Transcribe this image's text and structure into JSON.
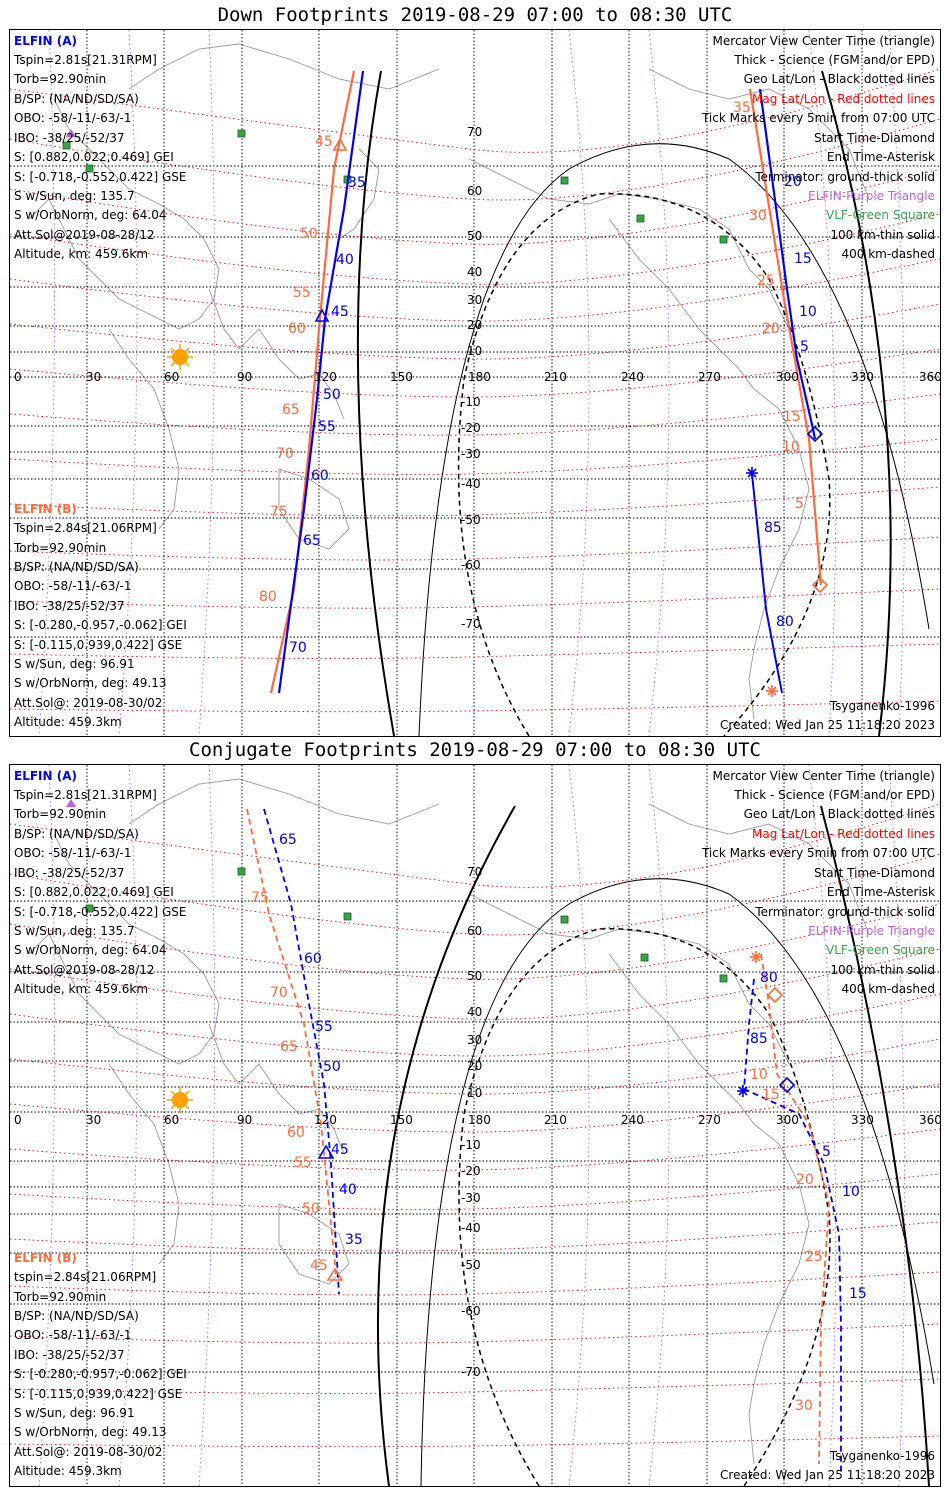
{
  "panels": [
    {
      "title": "Down Footprints 2019-08-29 07:00 to 08:30 UTC",
      "elfin_a": {
        "header": "ELFIN (A)",
        "lines": [
          "Tspin=2.81s[21.31RPM]",
          "Torb=92.90min",
          "B/SP: (NA/ND/SD/SA)",
          "OBO: -58/-11/-63/-1",
          "IBO: -38/25/-52/37",
          "S: [0.882,0.022,0.469] GEI",
          "S: [-0.718,-0.552,0.422] GSE",
          "S w/Sun, deg: 135.7",
          "S w/OrbNorm, deg: 64.04",
          "Att.Sol@2019-08-28/12",
          "Altitude, km: 459.6km"
        ]
      },
      "elfin_b": {
        "header": "ELFIN (B)",
        "lines": [
          "Tspin=2.84s[21.06RPM]",
          "Torb=92.90min",
          "B/SP: (NA/ND/SD/SA)",
          "OBO: -58/-11/-63/-1",
          "IBO: -38/25/-52/37",
          "S: [-0.280,-0.957,-0.062] GEI",
          "S: [-0.115,0.939,0.422] GSE",
          "S w/Sun, deg: 96.91",
          "S w/OrbNorm, deg: 49.13",
          "Att.Sol@: 2019-08-30/02",
          "Altitude: 459.3km"
        ]
      },
      "legend": [
        "Mercator View Center Time (triangle)",
        "Thick - Science (FGM and/or EPD)",
        "Geo Lat/Lon - Black dotted lines",
        "Mag Lat/Lon - Red dotted lines",
        "Tick Marks every 5min from 07:00 UTC",
        "Start Time-Diamond",
        "End Time-Asterisk",
        "Terminator: ground-thick solid",
        "ELFIN-Purple Triangle",
        "VLF-Green Square",
        "100 km-thin solid",
        "400 km-dashed"
      ],
      "footer_model": "Tsyganenko-1996",
      "footer_created": "Created: Wed Jan 25 11:18:20 2023",
      "track_a_labels": [
        "35",
        "40",
        "45",
        "50",
        "55",
        "60",
        "65",
        "70"
      ],
      "track_a_right_labels": [
        "20",
        "15",
        "10",
        "5",
        "85",
        "80"
      ],
      "track_b_labels": [
        "45",
        "50",
        "55",
        "60",
        "65",
        "70",
        "75",
        "80"
      ],
      "track_b_right_labels": [
        "35",
        "30",
        "25",
        "20",
        "15",
        "10",
        "5"
      ]
    },
    {
      "title": "Conjugate Footprints 2019-08-29 07:00 to 08:30 UTC",
      "elfin_a": {
        "header": "ELFIN (A)",
        "lines": [
          "Tspin=2.81s[21.31RPM]",
          "Torb=92.90min",
          "B/SP: (NA/ND/SD/SA)",
          "OBO: -58/-11/-63/-1",
          "IBO: -38/25/-52/37",
          "S: [0.882,0.022,0.469] GEI",
          "S: [-0.718,-0.552,0.422] GSE",
          "S w/Sun, deg: 135.7",
          "S w/OrbNorm, deg: 64.04",
          "Att.Sol@2019-08-28/12",
          "Altitude, km: 459.6km"
        ]
      },
      "elfin_b": {
        "header": "ELFIN (B)",
        "lines": [
          "tspin=2.84s[21.06RPM]",
          "Torb=92.90min",
          "B/SP: (NA/ND/SD/SA)",
          "OBO: -58/-11/-63/-1",
          "IBO: -38/25/-52/37",
          "S: [-0.280,-0.957,-0.062] GEI",
          "S: [-0.115,0.939,0.422] GSE",
          "S w/Sun, deg: 96.91",
          "S w/OrbNorm, deg: 49.13",
          "Att.Sol@: 2019-08-30/02",
          "Altitude: 459.3km"
        ]
      },
      "legend": [
        "Mercator View Center Time (triangle)",
        "Thick - Science (FGM and/or EPD)",
        "Geo Lat/Lon - Black dotted lines",
        "Mag Lat/Lon - Red dotted lines",
        "Tick Marks every 5min from 07:00 UTC",
        "Start Time-Diamond",
        "End Time-Asterisk",
        "Terminator: ground-thick solid",
        "ELFIN-Purple Triangle",
        "VLF-Green Square",
        "100 km-thin solid",
        "400 km-dashed"
      ],
      "footer_model": "Tsyganenko-1996",
      "footer_created": "Created: Wed Jan 25 11:18:20 2023",
      "track_a_labels": [
        "65",
        "60",
        "55",
        "50",
        "45",
        "40",
        "35"
      ],
      "track_a_right_labels": [
        "80",
        "85",
        "5",
        "10",
        "15"
      ],
      "track_b_labels": [
        "75",
        "70",
        "65",
        "60",
        "55",
        "50",
        "45"
      ],
      "track_b_right_labels": [
        "10",
        "15",
        "20",
        "25",
        "30"
      ]
    }
  ],
  "axes": {
    "lon_ticks": [
      "0",
      "30",
      "60",
      "90",
      "120",
      "150",
      "180",
      "210",
      "240",
      "270",
      "300",
      "330",
      "360"
    ],
    "lat_ticks": [
      "70",
      "60",
      "50",
      "40",
      "30",
      "20",
      "10",
      "-10",
      "-20",
      "-30",
      "-40",
      "-50",
      "-60",
      "-70"
    ]
  },
  "colors": {
    "elfin_a": "#0000ee",
    "elfin_b": "#ff6a3d",
    "mag_grid": "#ff0000",
    "geo_grid": "#000000",
    "elfin_marker": "#c060e0",
    "vlf": "#3aa34a",
    "sun": "#ffa000"
  }
}
